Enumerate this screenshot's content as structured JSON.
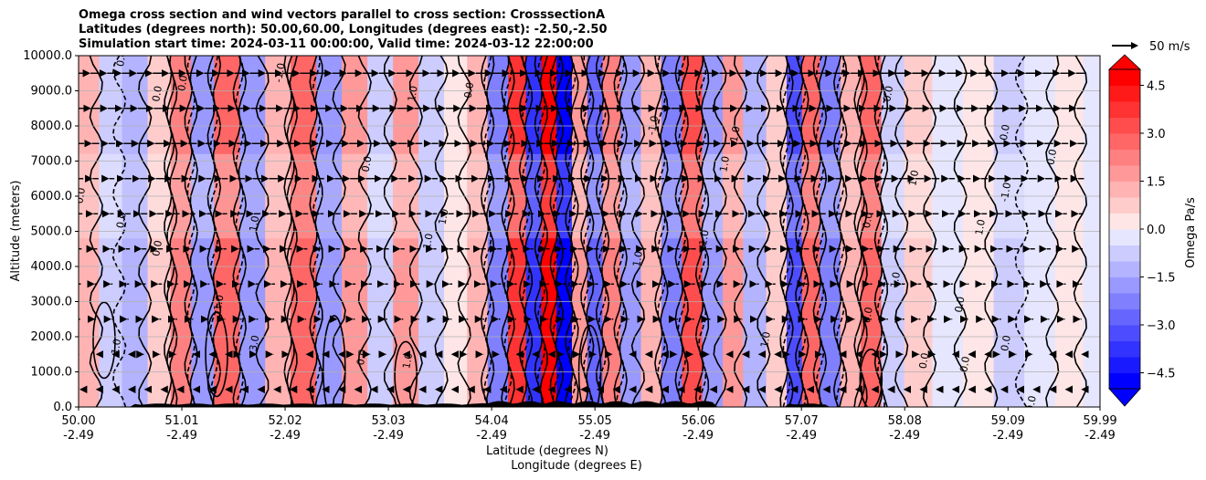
{
  "chart_data": {
    "type": "heatmap",
    "title_lines": [
      "Omega cross section and wind vectors parallel to cross section: CrosssectionA",
      "Latitudes (degrees north): 50.00,60.00, Longitudes (degrees east): -2.50,-2.50",
      "Simulation start time: 2024-03-11 00:00:00, Valid time: 2024-03-12 22:00:00"
    ],
    "ylabel": "Altitude (meters)",
    "xlabel_lines": [
      "Latitude (degrees N)",
      "Longitude (degrees E)"
    ],
    "ylim": [
      0,
      10000
    ],
    "xlim": [
      50.0,
      59.99
    ],
    "y_ticks": [
      {
        "value": 0,
        "label": "0.0"
      },
      {
        "value": 1000,
        "label": "1000.0"
      },
      {
        "value": 2000,
        "label": "2000.0"
      },
      {
        "value": 3000,
        "label": "3000.0"
      },
      {
        "value": 4000,
        "label": "4000.0"
      },
      {
        "value": 5000,
        "label": "5000.0"
      },
      {
        "value": 6000,
        "label": "6000.0"
      },
      {
        "value": 7000,
        "label": "7000.0"
      },
      {
        "value": 8000,
        "label": "8000.0"
      },
      {
        "value": 9000,
        "label": "9000.0"
      },
      {
        "value": 10000,
        "label": "10000.0"
      }
    ],
    "x_ticks": [
      {
        "value": 50.0,
        "lat": "50.00",
        "lon": "-2.49"
      },
      {
        "value": 51.01,
        "lat": "51.01",
        "lon": "-2.49"
      },
      {
        "value": 52.02,
        "lat": "52.02",
        "lon": "-2.49"
      },
      {
        "value": 53.03,
        "lat": "53.03",
        "lon": "-2.49"
      },
      {
        "value": 54.04,
        "lat": "54.04",
        "lon": "-2.49"
      },
      {
        "value": 55.05,
        "lat": "55.05",
        "lon": "-2.49"
      },
      {
        "value": 56.06,
        "lat": "56.06",
        "lon": "-2.49"
      },
      {
        "value": 57.07,
        "lat": "57.07",
        "lon": "-2.49"
      },
      {
        "value": 58.08,
        "lat": "58.08",
        "lon": "-2.49"
      },
      {
        "value": 59.09,
        "lat": "59.09",
        "lon": "-2.49"
      },
      {
        "value": 59.99,
        "lat": "59.99",
        "lon": "-2.49"
      }
    ],
    "colorbar": {
      "label": "Omega Pa/s",
      "range": [
        -5.0,
        5.0
      ],
      "step": 0.5,
      "extend": "both",
      "tick_values": [
        4.5,
        3.0,
        1.5,
        0.0,
        -1.5,
        -3.0,
        -4.5
      ],
      "tick_labels": [
        "4.5",
        "3.0",
        "1.5",
        "0.0",
        "−1.5",
        "−3.0",
        "−4.5"
      ]
    },
    "quiver_key": {
      "label": "50 m/s",
      "speed": 50
    },
    "bands": [
      {
        "lat": 50.1,
        "omega": 1.4
      },
      {
        "lat": 50.3,
        "omega": -0.6
      },
      {
        "lat": 50.55,
        "omega": -1.2
      },
      {
        "lat": 50.8,
        "omega": 0.8
      },
      {
        "lat": 51.0,
        "omega": 2.2
      },
      {
        "lat": 51.2,
        "omega": -1.6
      },
      {
        "lat": 51.45,
        "omega": 2.6
      },
      {
        "lat": 51.7,
        "omega": -1.9
      },
      {
        "lat": 51.95,
        "omega": 1.2
      },
      {
        "lat": 52.2,
        "omega": 2.8
      },
      {
        "lat": 52.45,
        "omega": -2.0
      },
      {
        "lat": 52.7,
        "omega": 1.8
      },
      {
        "lat": 52.95,
        "omega": -0.8
      },
      {
        "lat": 53.2,
        "omega": 1.6
      },
      {
        "lat": 53.45,
        "omega": -1.0
      },
      {
        "lat": 53.7,
        "omega": 0.4
      },
      {
        "lat": 53.9,
        "omega": 1.2
      },
      {
        "lat": 54.1,
        "omega": -2.2
      },
      {
        "lat": 54.3,
        "omega": 3.6
      },
      {
        "lat": 54.45,
        "omega": -3.8
      },
      {
        "lat": 54.6,
        "omega": 4.8
      },
      {
        "lat": 54.75,
        "omega": -5.0
      },
      {
        "lat": 54.9,
        "omega": 1.8
      },
      {
        "lat": 55.05,
        "omega": -2.6
      },
      {
        "lat": 55.2,
        "omega": 2.2
      },
      {
        "lat": 55.4,
        "omega": -1.6
      },
      {
        "lat": 55.6,
        "omega": 1.4
      },
      {
        "lat": 55.8,
        "omega": -2.4
      },
      {
        "lat": 56.0,
        "omega": 3.2
      },
      {
        "lat": 56.2,
        "omega": -1.8
      },
      {
        "lat": 56.4,
        "omega": 1.6
      },
      {
        "lat": 56.6,
        "omega": -1.2
      },
      {
        "lat": 56.85,
        "omega": 1.0
      },
      {
        "lat": 57.0,
        "omega": -3.2
      },
      {
        "lat": 57.15,
        "omega": 3.0
      },
      {
        "lat": 57.35,
        "omega": -2.2
      },
      {
        "lat": 57.55,
        "omega": 1.2
      },
      {
        "lat": 57.75,
        "omega": 3.0
      },
      {
        "lat": 57.95,
        "omega": -0.6
      },
      {
        "lat": 58.2,
        "omega": 0.6
      },
      {
        "lat": 58.5,
        "omega": -0.5
      },
      {
        "lat": 58.8,
        "omega": 0.3
      },
      {
        "lat": 59.1,
        "omega": -0.8
      },
      {
        "lat": 59.4,
        "omega": -0.4
      },
      {
        "lat": 59.7,
        "omega": 0.2
      },
      {
        "lat": 59.95,
        "omega": -0.5
      }
    ],
    "contour_labels": [
      {
        "lat": 50.45,
        "alt": 9900,
        "text": "0.0"
      },
      {
        "lat": 50.8,
        "alt": 8900,
        "text": "0.0"
      },
      {
        "lat": 51.05,
        "alt": 9200,
        "text": "0.0"
      },
      {
        "lat": 52.0,
        "alt": 9500,
        "text": "-1.0"
      },
      {
        "lat": 53.3,
        "alt": 8900,
        "text": "1.0"
      },
      {
        "lat": 53.85,
        "alt": 9000,
        "text": "0.0"
      },
      {
        "lat": 55.65,
        "alt": 8000,
        "text": "-1.0"
      },
      {
        "lat": 56.45,
        "alt": 7700,
        "text": "-1.0"
      },
      {
        "lat": 57.95,
        "alt": 8900,
        "text": "0.0"
      },
      {
        "lat": 59.09,
        "alt": 7800,
        "text": "0.0"
      },
      {
        "lat": 59.55,
        "alt": 7100,
        "text": "0.0"
      },
      {
        "lat": 50.05,
        "alt": 6000,
        "text": "0.0"
      },
      {
        "lat": 50.45,
        "alt": 5300,
        "text": "0.0"
      },
      {
        "lat": 50.8,
        "alt": 4500,
        "text": "0.0"
      },
      {
        "lat": 51.75,
        "alt": 5200,
        "text": "1.0"
      },
      {
        "lat": 52.85,
        "alt": 6900,
        "text": "0.0"
      },
      {
        "lat": 53.6,
        "alt": 5400,
        "text": "1.0"
      },
      {
        "lat": 53.45,
        "alt": 4700,
        "text": "1.0"
      },
      {
        "lat": 56.15,
        "alt": 4800,
        "text": "1.0"
      },
      {
        "lat": 56.35,
        "alt": 6900,
        "text": "1.0"
      },
      {
        "lat": 58.2,
        "alt": 6500,
        "text": "1.0"
      },
      {
        "lat": 58.85,
        "alt": 5100,
        "text": "1.0"
      },
      {
        "lat": 59.1,
        "alt": 6100,
        "text": "-1.0"
      },
      {
        "lat": 58.02,
        "alt": 3600,
        "text": "1.0"
      },
      {
        "lat": 58.65,
        "alt": 2900,
        "text": "0.0"
      },
      {
        "lat": 59.1,
        "alt": 1800,
        "text": "0.0"
      },
      {
        "lat": 58.3,
        "alt": 1300,
        "text": "0.0"
      },
      {
        "lat": 58.7,
        "alt": 1200,
        "text": "0.0"
      },
      {
        "lat": 59.35,
        "alt": 80,
        "text": "0.0"
      },
      {
        "lat": 50.4,
        "alt": 1700,
        "text": "1.0"
      },
      {
        "lat": 51.75,
        "alt": 1800,
        "text": "3.0"
      },
      {
        "lat": 52.8,
        "alt": 1400,
        "text": "0.0"
      },
      {
        "lat": 53.25,
        "alt": 1300,
        "text": "1.0"
      },
      {
        "lat": 55.5,
        "alt": 4200,
        "text": "1.0"
      },
      {
        "lat": 56.75,
        "alt": 1900,
        "text": "1.0"
      },
      {
        "lat": 57.75,
        "alt": 2600,
        "text": "0.0"
      },
      {
        "lat": 57.75,
        "alt": 5300,
        "text": "0.0"
      },
      {
        "lat": 51.4,
        "alt": 2900,
        "text": "-1.0"
      }
    ],
    "vectors": {
      "lat_start": 50.0,
      "lat_end": 59.95,
      "lat_step": 0.158,
      "levels": [
        500,
        1500,
        2500,
        3500,
        4500,
        5500,
        6500,
        7500,
        8500,
        9500
      ],
      "top_speed": 40
    }
  }
}
